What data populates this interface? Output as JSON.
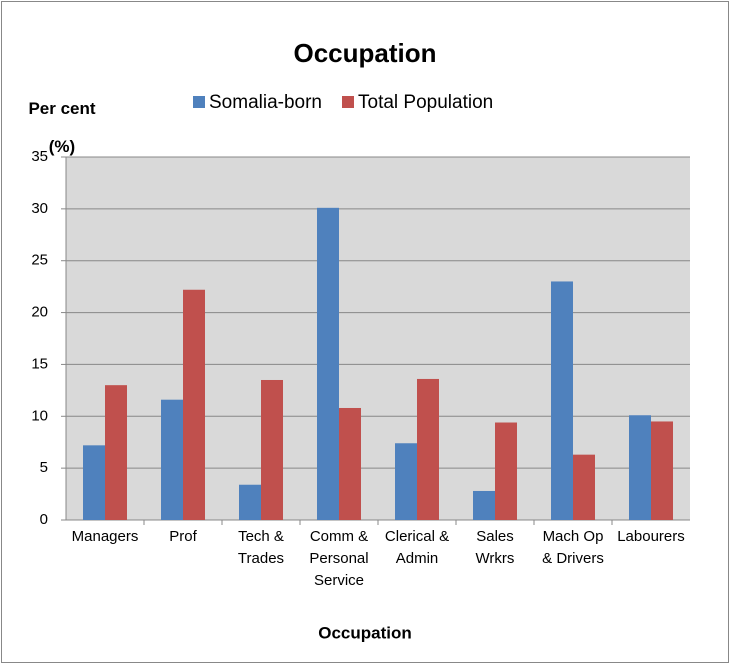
{
  "chart_data": {
    "type": "bar",
    "title": "Occupation",
    "y_axis_label": "Per cent (%)",
    "x_axis_label": "Occupation",
    "categories": [
      "Managers",
      "Prof",
      "Tech & Trades",
      "Comm & Personal Service",
      "Clerical & Admin",
      "Sales Wrkrs",
      "Mach Op & Drivers",
      "Labourers"
    ],
    "series": [
      {
        "name": "Somalia-born",
        "color": "#4f81bd",
        "values": [
          7.2,
          11.6,
          3.4,
          30.1,
          7.4,
          2.8,
          23.0,
          10.1
        ]
      },
      {
        "name": "Total Population",
        "color": "#c0504d",
        "values": [
          13.0,
          22.2,
          13.5,
          10.8,
          13.6,
          9.4,
          6.3,
          9.5
        ]
      }
    ],
    "ylim": [
      0,
      35
    ],
    "yticks": [
      0,
      5,
      10,
      15,
      20,
      25,
      30,
      35
    ],
    "grid": true,
    "legend": "top"
  }
}
